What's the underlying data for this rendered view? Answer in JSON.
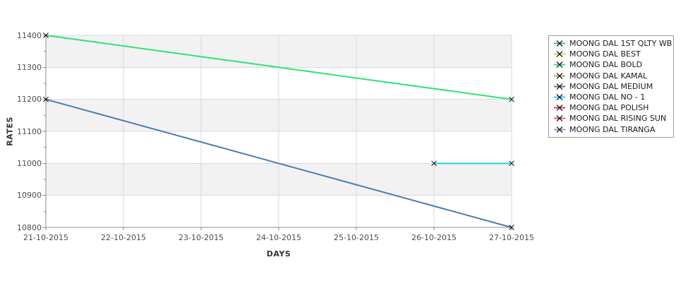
{
  "chart_data": {
    "type": "line",
    "title": "",
    "xlabel": "DAYS",
    "ylabel": "RATES",
    "x_categories": [
      "21-10-2015",
      "22-10-2015",
      "23-10-2015",
      "24-10-2015",
      "25-10-2015",
      "26-10-2015",
      "27-10-2015"
    ],
    "ylim": [
      10800,
      11400
    ],
    "yticks": [
      10800,
      10900,
      11000,
      11100,
      11200,
      11300,
      11400
    ],
    "ytick_step": 100,
    "ytick_minor_step": 50,
    "grid": true,
    "legend_position": "right",
    "marker": "x",
    "style": {
      "band_fill": "#f2f2f2",
      "band_alt_fill": "#ffffff",
      "grid_color": "#d9d9d9",
      "axis_color": "#8c8c8c",
      "marker_color": "#000000",
      "legend_border": "#9a9a9a"
    },
    "series": [
      {
        "name": "MOONG DAL 1ST QLTY WB",
        "color": "#4DB3B3",
        "points": []
      },
      {
        "name": "MOONG DAL BEST",
        "color": "#DCD25E",
        "points": []
      },
      {
        "name": "MOONG DAL BOLD",
        "color": "#2FE273",
        "points": [
          [
            "21-10-2015",
            11400
          ],
          [
            "27-10-2015",
            11200
          ]
        ]
      },
      {
        "name": "MOONG DAL KAMAL",
        "color": "#B2B23C",
        "points": []
      },
      {
        "name": "MOONG DAL MEDIUM",
        "color": "#4A7DAC",
        "points": [
          [
            "21-10-2015",
            11200
          ],
          [
            "27-10-2015",
            10800
          ]
        ]
      },
      {
        "name": "MOONG DAL NO - 1",
        "color": "#2EC9F2",
        "points": [
          [
            "26-10-2015",
            11000
          ],
          [
            "27-10-2015",
            11000
          ]
        ]
      },
      {
        "name": "MOONG DAL POLISH",
        "color": "#EE2E8C",
        "points": []
      },
      {
        "name": "MOONG DAL RISING SUN",
        "color": "#E85470",
        "points": []
      },
      {
        "name": "MOONG DAL TIRANGA",
        "color": "#A593CF",
        "points": []
      }
    ]
  }
}
